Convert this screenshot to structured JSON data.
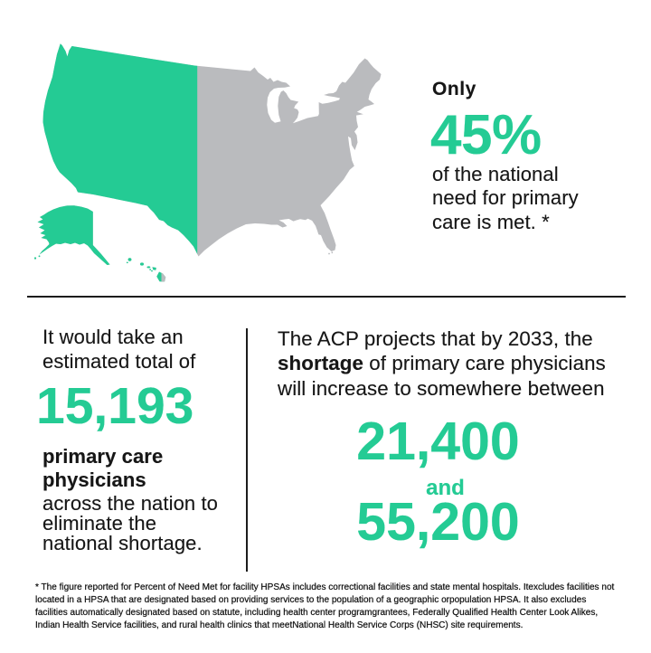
{
  "colors": {
    "green": "#24CB94",
    "map_gray": "#BABBBE",
    "ink": "#161616"
  },
  "map": {
    "name": "united-states-map",
    "green_portion_note": "left 45% of map shown in green, rest gray"
  },
  "top_stat": {
    "lead": "Only",
    "value": "45%",
    "line1": "of the national",
    "line2": "need for primary",
    "line3": "care is met. *"
  },
  "left_stat": {
    "intro1": "It would take an",
    "intro2": "estimated total of",
    "value": "15,193",
    "bold1": "primary care",
    "bold2": "physicians",
    "rest1": "across the nation to",
    "rest2": "eliminate the",
    "rest3": "national shortage."
  },
  "right_stat": {
    "line1": "The ACP projects that by 2033, the",
    "line2_bold": "shortage",
    "line2_rest": " of primary care physicians",
    "line3": "will increase to somewhere between",
    "value_low": "21,400",
    "conjunction": "and",
    "value_high": "55,200"
  },
  "footnote": {
    "line1": "* The figure reported for Percent of Need Met for facility HPSAs includes correctional facilities and state mental hospitals. Itexcludes facilities not",
    "line2": "located in a HPSA that are designated based on providing services to the population of a geographic orpopulation HPSA. It also excludes",
    "line3": "facilities automatically designated based on statute, including health center programgrantees, Federally Qualified Health Center Look Alikes,",
    "line4": "Indian Health Service facilities, and rural health clinics that meetNational Health Service Corps (NHSC) site requirements."
  }
}
